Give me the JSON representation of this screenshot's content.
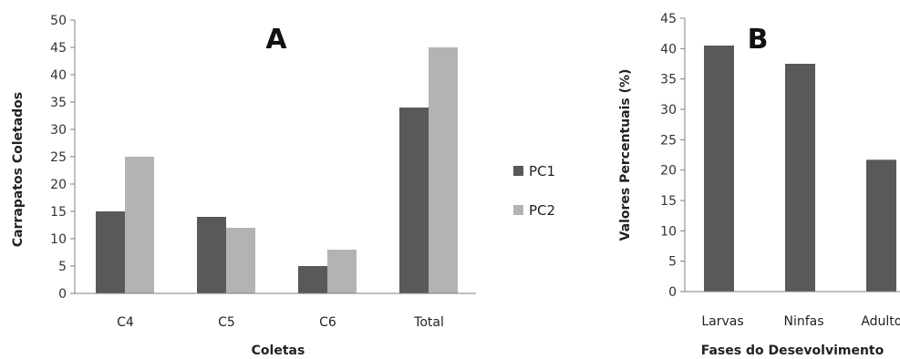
{
  "chart_data": [
    {
      "type": "bar",
      "title": "A",
      "xlabel": "Coletas",
      "ylabel": "Carrapatos Coletados",
      "ylim": [
        0,
        50
      ],
      "yticks": [
        0,
        5,
        10,
        15,
        20,
        25,
        30,
        35,
        40,
        45,
        50
      ],
      "categories": [
        "C4",
        "C5",
        "C6",
        "Total"
      ],
      "series": [
        {
          "name": "PC1",
          "color": "#595959",
          "values": [
            15,
            14,
            5,
            34
          ]
        },
        {
          "name": "PC2",
          "color": "#b3b3b3",
          "values": [
            25,
            12,
            8,
            45
          ]
        }
      ],
      "legend": "right",
      "grid": false
    },
    {
      "type": "bar",
      "title": "B",
      "xlabel": "Fases do Desevolvimento",
      "ylabel": "Valores Percentuais (%)",
      "ylim": [
        0,
        45
      ],
      "yticks": [
        0,
        5,
        10,
        15,
        20,
        25,
        30,
        35,
        40,
        45
      ],
      "categories": [
        "Larvas",
        "Ninfas",
        "Adultos"
      ],
      "series": [
        {
          "color": "#595959",
          "values": [
            40.5,
            37.5,
            21.7
          ]
        }
      ],
      "grid": false
    }
  ]
}
